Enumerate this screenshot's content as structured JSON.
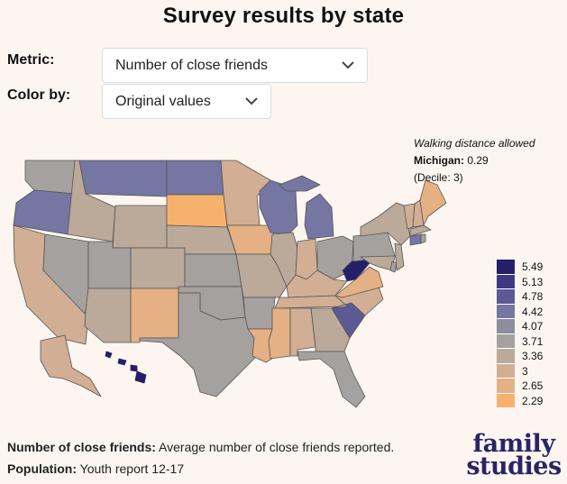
{
  "title": "Survey results by state",
  "controls": {
    "metric_label": "Metric:",
    "metric_value": "Number of close friends",
    "color_label": "Color by:",
    "color_value": "Original values"
  },
  "tooltip": {
    "title": "Walking distance allowed",
    "state": "Michigan:",
    "value": "0.29",
    "decile": "(Decile: 3)"
  },
  "legend": {
    "items": [
      {
        "label": "5.49",
        "color": "#241f6b"
      },
      {
        "label": "5.13",
        "color": "#3d3a83"
      },
      {
        "label": "4.78",
        "color": "#5a5a94"
      },
      {
        "label": "4.42",
        "color": "#7576a2"
      },
      {
        "label": "4.07",
        "color": "#8d8d9e"
      },
      {
        "label": "3.71",
        "color": "#a5a19e"
      },
      {
        "label": "3.36",
        "color": "#bba999"
      },
      {
        "label": "3",
        "color": "#d1ae94"
      },
      {
        "label": "2.65",
        "color": "#e5b184"
      },
      {
        "label": "2.29",
        "color": "#f6b26d"
      }
    ]
  },
  "footer": {
    "metric_name": "Number of close friends:",
    "metric_desc": "Average number of close friends reported.",
    "population_label": "Population:",
    "population_value": "Youth report 12-17"
  },
  "logo": {
    "line1": "family",
    "line2": "studies"
  }
}
